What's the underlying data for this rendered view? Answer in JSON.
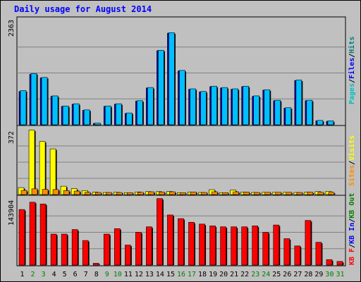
{
  "chart_data": {
    "type": "bar",
    "title": "Daily usage for August 2014",
    "categories": [
      "1",
      "2",
      "3",
      "4",
      "5",
      "6",
      "7",
      "8",
      "9",
      "10",
      "11",
      "12",
      "13",
      "14",
      "15",
      "16",
      "17",
      "18",
      "19",
      "20",
      "21",
      "22",
      "23",
      "24",
      "25",
      "26",
      "27",
      "28",
      "29",
      "30",
      "31"
    ],
    "weekend_categories": [
      "2",
      "3",
      "9",
      "10",
      "16",
      "17",
      "23",
      "24",
      "30",
      "31"
    ],
    "panels": [
      {
        "max_label": "2363",
        "ylim": [
          0,
          2363
        ],
        "series": [
          {
            "name": "Hits",
            "color": "#00bfff",
            "values": [
              780,
              1170,
              1080,
              660,
              430,
              480,
              340,
              40,
              430,
              480,
              270,
              550,
              850,
              1700,
              2100,
              1240,
              820,
              760,
              880,
              850,
              820,
              880,
              660,
              800,
              560,
              390,
              1020,
              560,
              100,
              90,
              0
            ]
          },
          {
            "name": "Files",
            "color": "#0000ff",
            "values": [
              760,
              1150,
              1070,
              650,
              420,
              470,
              330,
              30,
              420,
              470,
              260,
              540,
              840,
              1690,
              2090,
              1230,
              810,
              750,
              870,
              840,
              810,
              870,
              650,
              790,
              550,
              380,
              1010,
              550,
              90,
              80,
              0
            ]
          },
          {
            "name": "Pages",
            "color": "#00c0c0",
            "values": []
          }
        ],
        "legend_colors": [
          "#00bfff",
          "#0000ff",
          "#00c0c0"
        ]
      },
      {
        "max_label": "372",
        "ylim": [
          0,
          372
        ],
        "series": [
          {
            "name": "Visits",
            "color": "#ffff00",
            "values": [
              40,
              370,
              305,
              262,
              48,
              34,
              23,
              14,
              12,
              13,
              11,
              15,
              17,
              17,
              18,
              11,
              15,
              12,
              28,
              11,
              26,
              14,
              12,
              13,
              13,
              13,
              12,
              14,
              17,
              19,
              0
            ]
          },
          {
            "name": "Sites",
            "color": "#ff8c00",
            "values": [
              24,
              33,
              30,
              29,
              23,
              20,
              13,
              12,
              12,
              12,
              11,
              13,
              16,
              15,
              16,
              11,
              15,
              12,
              16,
              11,
              16,
              14,
              12,
              13,
              13,
              13,
              12,
              14,
              13,
              13,
              0
            ]
          }
        ],
        "legend_colors": [
          "#ffff00",
          "#ff8c00"
        ]
      },
      {
        "max_label": "143904",
        "ylim": [
          0,
          143904
        ],
        "series": [
          {
            "name": "KBytes",
            "color": "#ff0000",
            "values": [
              122000,
              138000,
              134000,
              68000,
              68000,
              78000,
              54000,
              4000,
              68000,
              80000,
              44000,
              72000,
              84000,
              146000,
              110000,
              102000,
              94000,
              90000,
              86000,
              84000,
              84000,
              84000,
              86000,
              72000,
              88000,
              58000,
              42000,
              98000,
              50000,
              12000,
              8000
            ]
          }
        ],
        "legend": [
          {
            "text": "KB F",
            "color": "#ff0000"
          },
          {
            "text": "KB In",
            "color": "#0000ff"
          },
          {
            "text": "KB Out",
            "color": "#008000"
          }
        ]
      }
    ]
  }
}
